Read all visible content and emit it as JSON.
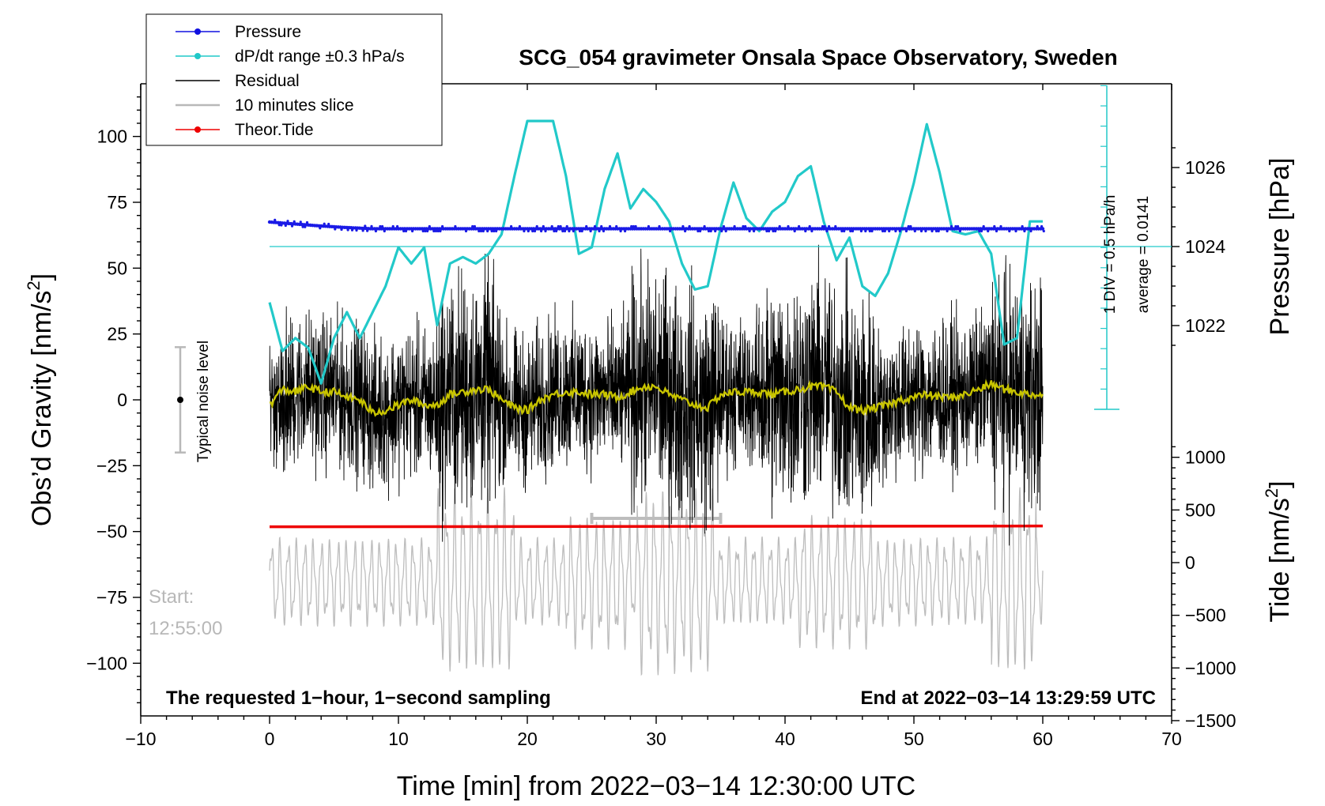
{
  "chart_data": {
    "type": "line",
    "title": "SCG_054 gravimeter Onsala Space Observatory, Sweden",
    "xlabel": "Time [min] from 2022−03−14 12:30:00 UTC",
    "xlim": [
      -10,
      70
    ],
    "xticks": [
      "−10",
      "0",
      "10",
      "20",
      "30",
      "40",
      "50",
      "60",
      "70"
    ],
    "left_axis": {
      "label": "Obs’d Gravity [nm/s",
      "label_sup": "2",
      "label_end": "]",
      "ylim": [
        -120,
        120
      ],
      "ticks": [
        "100",
        "75",
        "50",
        "25",
        "0",
        "−25",
        "−50",
        "−75",
        "−100"
      ]
    },
    "pressure_axis": {
      "label": "Pressure [hPa]",
      "ticks": [
        "1026",
        "1024",
        "1022"
      ],
      "pressure_hpa": [
        1024.62,
        1024.57,
        1024.52,
        1024.48,
        1024.45,
        1024.45,
        1024.45,
        1024.45,
        1024.45,
        1024.45,
        1024.45,
        1024.45,
        1024.45
      ],
      "pressure_time_min": [
        0,
        2,
        4,
        6,
        8,
        10,
        15,
        20,
        30,
        40,
        50,
        55,
        60
      ]
    },
    "tide_axis": {
      "label": "Tide [nm/s",
      "label_sup": "2",
      "label_end": "]",
      "ticks": [
        "1000",
        "500",
        "0",
        "−500",
        "−1000",
        "−1500"
      ],
      "theor_tide_level_nm_s2": 340
    },
    "dpdt_curve": {
      "time_min": [
        0,
        1,
        2,
        3,
        4,
        5,
        6,
        7,
        8,
        9,
        10,
        11,
        12,
        13,
        14,
        15,
        16,
        17,
        18,
        19,
        20,
        21,
        22,
        23,
        24,
        25,
        26,
        27,
        28,
        29,
        30,
        31,
        32,
        33,
        34,
        35,
        36,
        37,
        38,
        39,
        40,
        41,
        42,
        43,
        44,
        45,
        46,
        47,
        48,
        49,
        50,
        51,
        52,
        53,
        54,
        55,
        56,
        57,
        58,
        59,
        60
      ],
      "level_pct": [
        33,
        18,
        22,
        19,
        8,
        22,
        30,
        22,
        30,
        38,
        50,
        45,
        50,
        26,
        45,
        47,
        45,
        48,
        54,
        72,
        89,
        89,
        89,
        72,
        48,
        50,
        68,
        79,
        62,
        68,
        64,
        58,
        45,
        37,
        38,
        56,
        70,
        59,
        55,
        61,
        64,
        72,
        75,
        58,
        46,
        53,
        38,
        35,
        42,
        55,
        70,
        88,
        73,
        55,
        54,
        55,
        48,
        20,
        22,
        58,
        58
      ]
    },
    "dpdt_scale_text": "1 DIV = 0.5 hPa/h",
    "dpdt_average_text": "average = 0.0141",
    "residual_smooth": {
      "time_min": [
        0,
        1,
        2,
        3,
        4,
        5,
        6,
        7,
        8,
        9,
        10,
        11,
        12,
        13,
        14,
        15,
        16,
        17,
        18,
        19,
        20,
        21,
        22,
        23,
        24,
        25,
        26,
        27,
        28,
        29,
        30,
        31,
        32,
        33,
        34,
        35,
        36,
        37,
        38,
        39,
        40,
        41,
        42,
        43,
        44,
        45,
        46,
        47,
        48,
        49,
        50,
        51,
        52,
        53,
        54,
        55,
        56,
        57,
        58,
        59,
        60
      ],
      "value_nm_s2": [
        -2,
        4,
        3,
        5,
        3,
        3,
        1,
        0,
        -5,
        -4,
        -2,
        0,
        -2,
        -2,
        2,
        3,
        4,
        4,
        0,
        -3,
        -4,
        0,
        2,
        3,
        3,
        2,
        2,
        1,
        3,
        5,
        5,
        2,
        0,
        -2,
        -3,
        2,
        3,
        3,
        3,
        2,
        3,
        4,
        5,
        5,
        3,
        -3,
        -4,
        -3,
        -2,
        0,
        1,
        2,
        1,
        1,
        2,
        4,
        6,
        4,
        3,
        2,
        2
      ]
    },
    "noise_level_nm_s2": 20,
    "noise_label": "Typical noise level",
    "slice_window_min": [
      25,
      35
    ],
    "start_label": "Start:",
    "start_time": "12:55:00",
    "note_left": "The requested 1−hour, 1−second sampling",
    "note_right": "End at 2022−03−14 13:29:59 UTC",
    "legend": [
      {
        "label": "Pressure",
        "color": "#1010e0",
        "marker": true
      },
      {
        "label": "dP/dt range ±0.3 hPa/s",
        "color": "#20c8c8",
        "marker": true
      },
      {
        "label": "Residual",
        "color": "#000000",
        "marker": false
      },
      {
        "label": "10 minutes slice",
        "color": "#b8b8b8",
        "marker": false
      },
      {
        "label": "Theor.Tide",
        "color": "#ee0000",
        "marker": true
      }
    ],
    "colors": {
      "pressure": "#1a1ae6",
      "dpdt": "#22c9c9",
      "residual": "#000000",
      "smooth": "#c8c400",
      "slice": "#bdbdbd",
      "tide": "#ee0000"
    }
  }
}
